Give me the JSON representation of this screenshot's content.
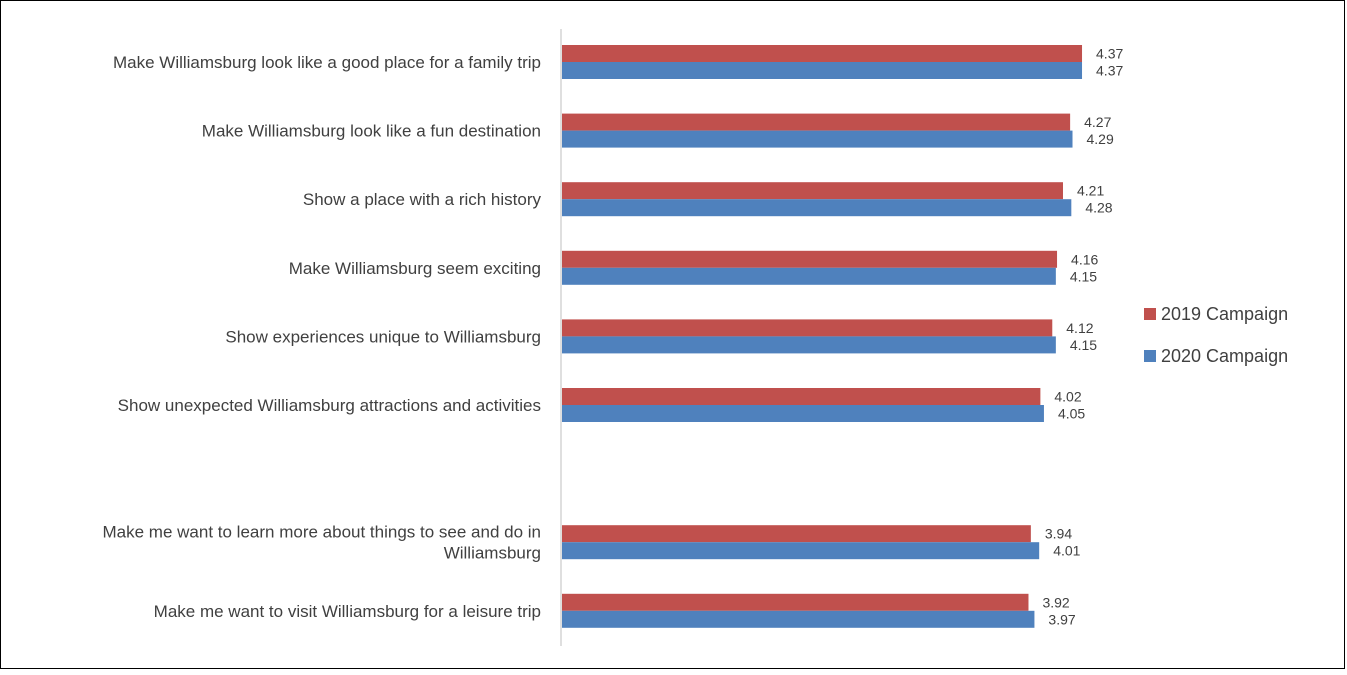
{
  "chart_data": {
    "type": "bar",
    "orientation": "horizontal",
    "categories": [
      "Make Williamsburg look like a good place for a family trip",
      "Make Williamsburg look like a fun destination",
      "Show  a place with a rich history",
      "Make Williamsburg seem exciting",
      "Show experiences unique to Williamsburg",
      "Show unexpected Williamsburg attractions and activities",
      "",
      "Make me want to learn more about things to see and do in Williamsburg",
      "Make me want to visit Williamsburg for a leisure trip"
    ],
    "category_lines": [
      [
        "Make Williamsburg look like a good place for a family trip"
      ],
      [
        "Make Williamsburg look like a fun destination"
      ],
      [
        "Show  a place with a rich history"
      ],
      [
        "Make Williamsburg seem exciting"
      ],
      [
        "Show experiences unique to Williamsburg"
      ],
      [
        "Show unexpected Williamsburg attractions and activities"
      ],
      [],
      [
        "Make me want to learn more about things to see and do in",
        "Williamsburg"
      ],
      [
        "Make me want to visit Williamsburg for a leisure trip"
      ]
    ],
    "series": [
      {
        "name": "2019 Campaign",
        "color": "#C0504D",
        "values": [
          4.37,
          4.27,
          4.21,
          4.16,
          4.12,
          4.02,
          null,
          3.94,
          3.92
        ],
        "labels": [
          "4.37",
          "4.27",
          "4.21",
          "4.16",
          "4.12",
          "4.02",
          "",
          "3.94",
          "3.92"
        ]
      },
      {
        "name": "2020 Campaign",
        "color": "#4F81BD",
        "values": [
          4.37,
          4.29,
          4.28,
          4.15,
          4.15,
          4.05,
          null,
          4.01,
          3.97
        ],
        "labels": [
          "4.37",
          "4.29",
          "4.28",
          "4.15",
          "4.15",
          "4.05",
          "",
          "4.01",
          "3.97"
        ]
      }
    ],
    "legend_position": "right",
    "grid": false,
    "title": "",
    "xlabel": "",
    "ylabel": ""
  }
}
